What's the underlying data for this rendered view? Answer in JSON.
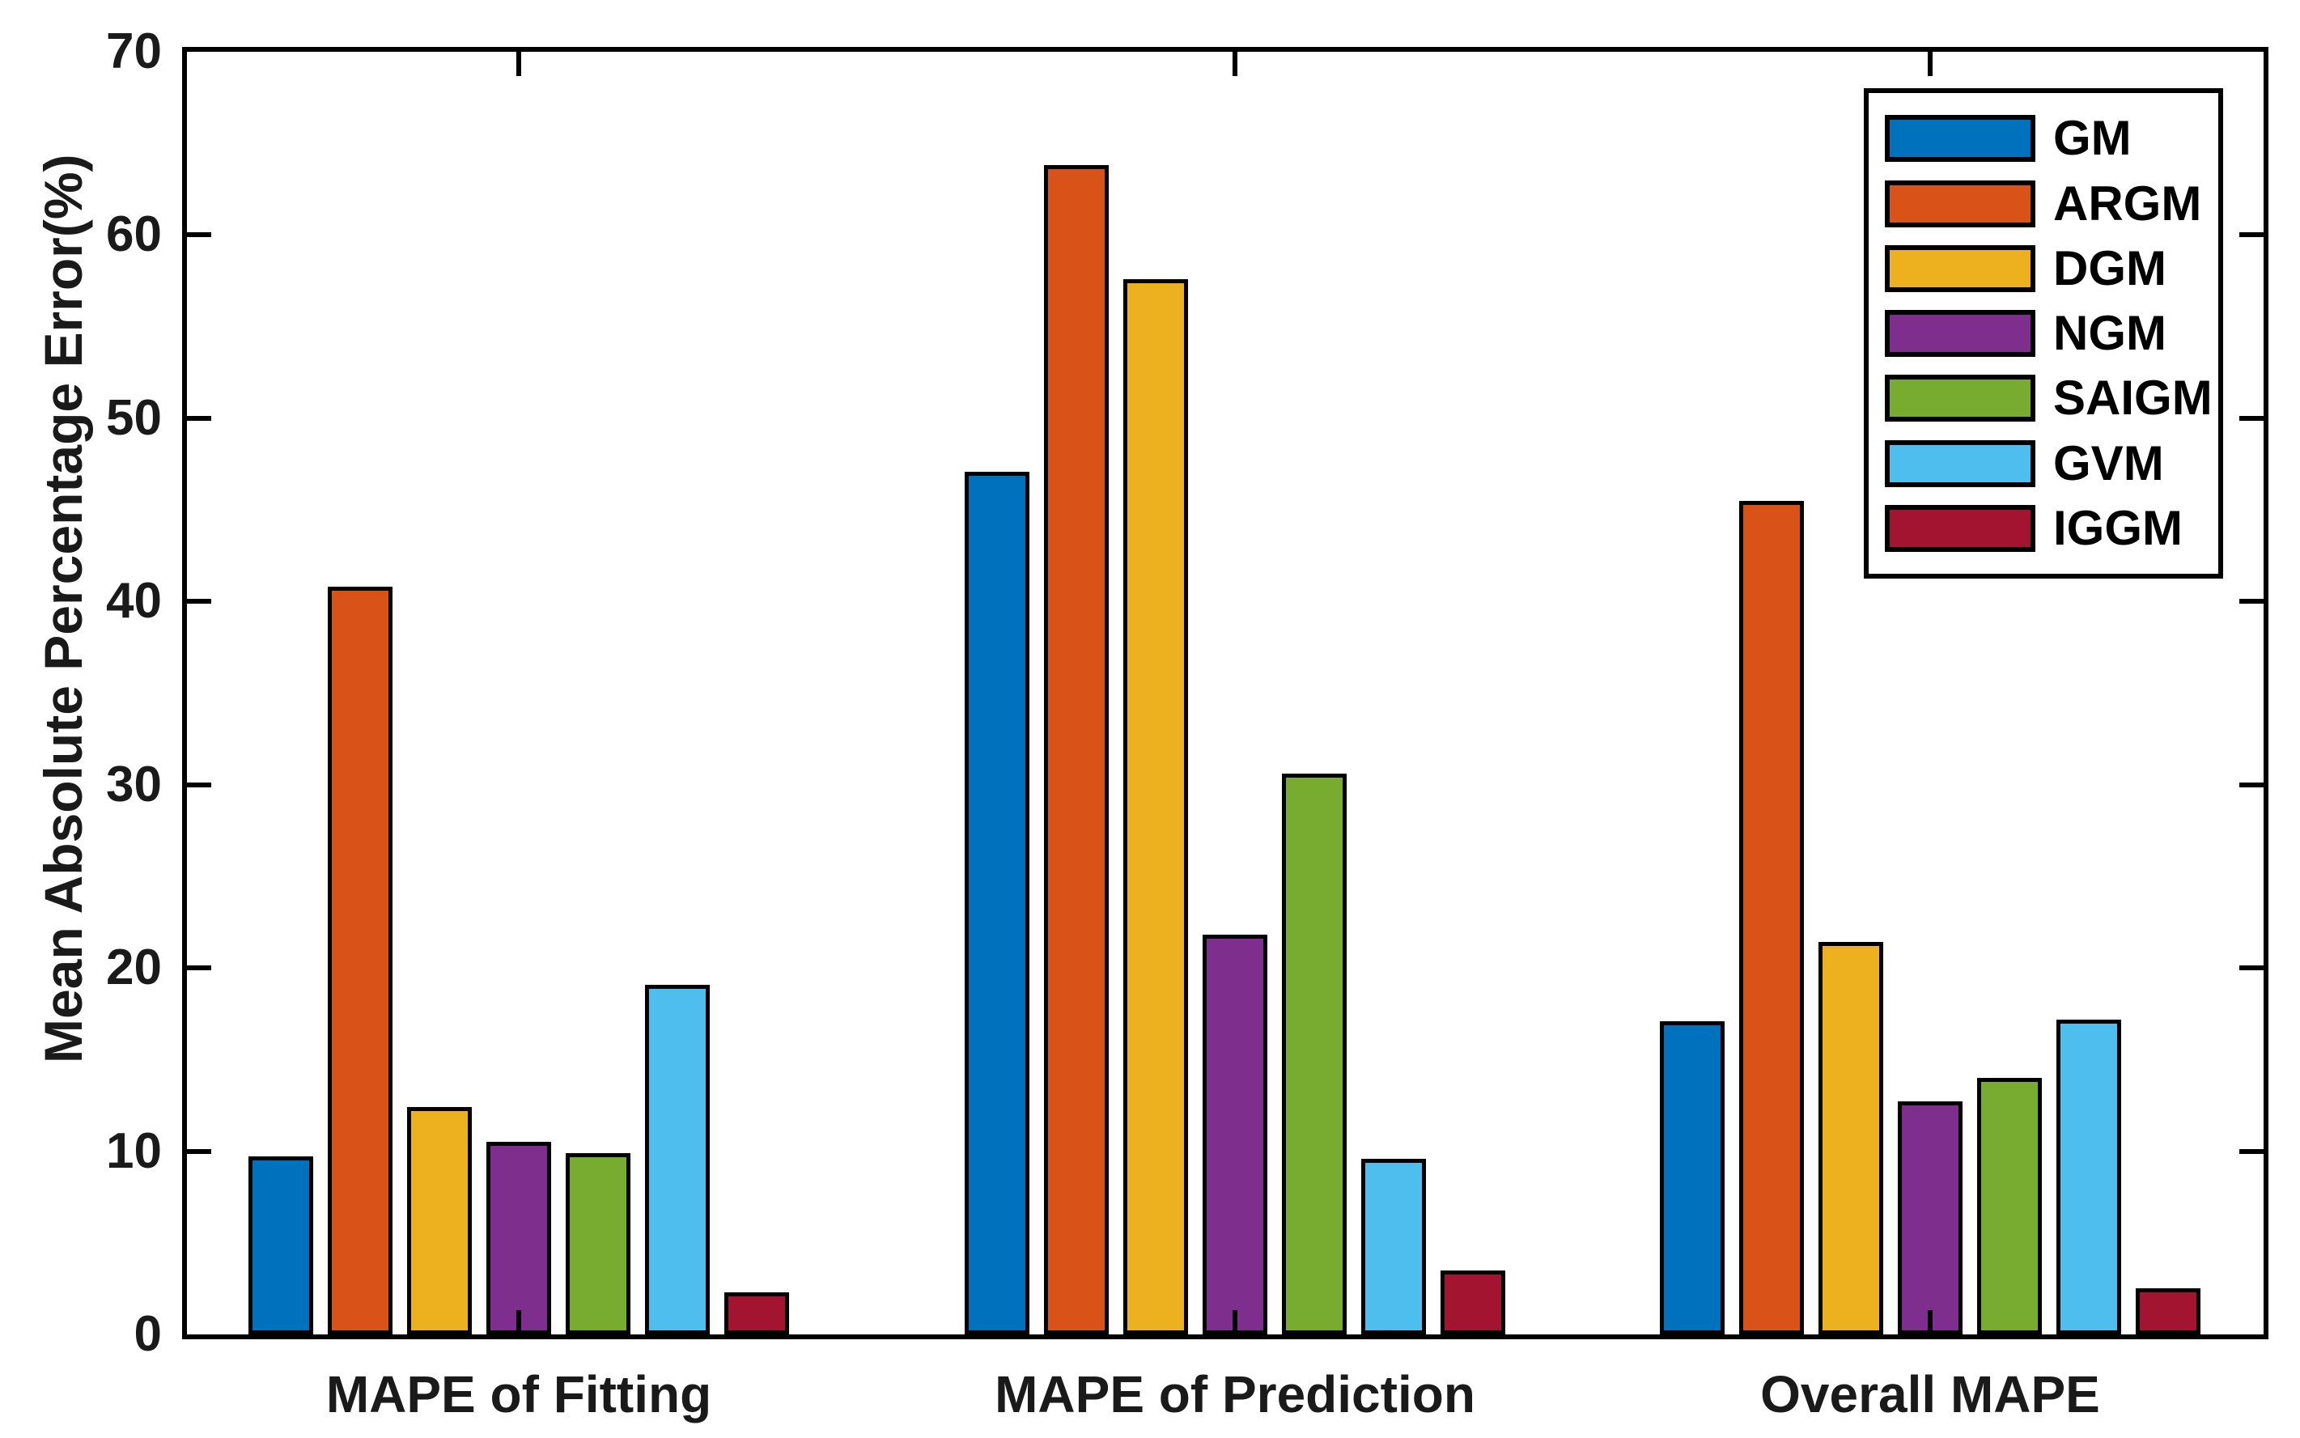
{
  "figure": {
    "background_color": "#ffffff",
    "axis_color": "#000000",
    "bar_outline_color": "#000000"
  },
  "chart_data": {
    "type": "bar",
    "title": "",
    "xlabel": "",
    "ylabel": "Mean Absolute Percentage Error(%)",
    "ylim": [
      0,
      70
    ],
    "yticks": [
      0,
      10,
      20,
      30,
      40,
      50,
      60,
      70
    ],
    "grid": false,
    "legend_position": "upper-right",
    "categories": [
      "MAPE of Fitting",
      "MAPE of Prediction",
      "Overall MAPE"
    ],
    "series": [
      {
        "name": "GM",
        "color": "#0072BD",
        "values": [
          9.7,
          47.1,
          17.1
        ]
      },
      {
        "name": "ARGM",
        "color": "#D95319",
        "values": [
          40.8,
          63.8,
          45.5
        ]
      },
      {
        "name": "DGM",
        "color": "#EDB120",
        "values": [
          12.4,
          57.6,
          21.4
        ]
      },
      {
        "name": "NGM",
        "color": "#7E2F8E",
        "values": [
          10.5,
          21.8,
          12.7
        ]
      },
      {
        "name": "SAIGM",
        "color": "#77AC30",
        "values": [
          9.9,
          30.6,
          14.0
        ]
      },
      {
        "name": "GVM",
        "color": "#4DBEEE",
        "values": [
          19.1,
          9.6,
          17.2
        ]
      },
      {
        "name": "IGGM",
        "color": "#A2142F",
        "values": [
          2.3,
          3.5,
          2.5
        ]
      }
    ]
  }
}
